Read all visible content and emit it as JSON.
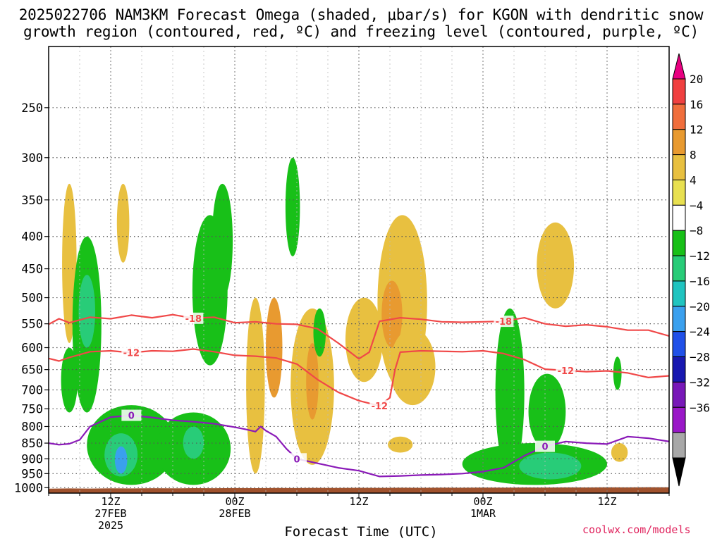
{
  "title": {
    "line1": "2025022706 NAM3KM Forecast Omega (shaded, μbar/s) for KGON with dendritic snow",
    "line2": "growth region (contoured, red, ºC) and freezing level (contoured, purple, ºC)"
  },
  "credit": "coolwx.com/models",
  "chart_data": {
    "type": "heatmap",
    "title": "2025022706 NAM3KM Forecast Omega (shaded, μbar/s) for KGON with dendritic snow growth region (contoured, red, ºC) and freezing level (contoured, purple, ºC)",
    "xlabel": "Forecast Time (UTC)",
    "ylabel": "",
    "y_log_scale": true,
    "y_reversed": true,
    "y_ticks": [
      250,
      300,
      350,
      400,
      450,
      500,
      550,
      600,
      650,
      700,
      750,
      800,
      850,
      900,
      950,
      1000
    ],
    "x_ticks": [
      {
        "top": "12Z",
        "mid": "27FEB",
        "bot": "2025"
      },
      {
        "top": "00Z",
        "mid": "28FEB",
        "bot": ""
      },
      {
        "top": "12Z",
        "mid": "",
        "bot": ""
      },
      {
        "top": "00Z",
        "mid": "1MAR",
        "bot": ""
      },
      {
        "top": "12Z",
        "mid": "",
        "bot": ""
      }
    ],
    "x_tick_hours": [
      6,
      18,
      30,
      42,
      54
    ],
    "x_range_hours": [
      0,
      60
    ],
    "y_range_hpa": [
      200,
      1020
    ],
    "grid": true,
    "colorbar": {
      "levels": [
        "20",
        "16",
        "12",
        "8",
        "4",
        "−4",
        "−8",
        "−12",
        "−16",
        "−20",
        "−24",
        "−28",
        "−32",
        "−36"
      ],
      "colors": [
        "#e80080",
        "#f04040",
        "#f06e3c",
        "#e89a30",
        "#e8c040",
        "#e8e050",
        "#ffffff",
        "#18c018",
        "#28cc78",
        "#20c4c0",
        "#3aa0ee",
        "#2050e8",
        "#1818b0",
        "#7818b8",
        "#9a18c8",
        "#a8a8a8",
        "#000000"
      ]
    },
    "contours": [
      {
        "color": "#f04848",
        "labels": [
          "-18",
          "-18"
        ],
        "points": [
          [
            0,
            551
          ],
          [
            1,
            540
          ],
          [
            2,
            548
          ],
          [
            4,
            537
          ],
          [
            6,
            540
          ],
          [
            8,
            533
          ],
          [
            10,
            538
          ],
          [
            12,
            532
          ],
          [
            14,
            539
          ],
          [
            16,
            537
          ],
          [
            18,
            548
          ],
          [
            20,
            546
          ],
          [
            22,
            550
          ],
          [
            24,
            551
          ],
          [
            26,
            560
          ],
          [
            28,
            590
          ],
          [
            30,
            625
          ],
          [
            31,
            610
          ],
          [
            32,
            545
          ],
          [
            34,
            538
          ],
          [
            36,
            541
          ],
          [
            38,
            546
          ],
          [
            40,
            547
          ],
          [
            42,
            546
          ],
          [
            44,
            545
          ],
          [
            46,
            538
          ],
          [
            48,
            550
          ],
          [
            50,
            555
          ],
          [
            52,
            552
          ],
          [
            54,
            556
          ],
          [
            56,
            563
          ],
          [
            58,
            563
          ],
          [
            60,
            575
          ]
        ]
      },
      {
        "color": "#f04848",
        "labels": [
          "-12",
          "-12",
          "-12"
        ],
        "points": [
          [
            0,
            624
          ],
          [
            1,
            630
          ],
          [
            2,
            622
          ],
          [
            4,
            609
          ],
          [
            6,
            607
          ],
          [
            8,
            611
          ],
          [
            10,
            607
          ],
          [
            12,
            608
          ],
          [
            14,
            603
          ],
          [
            16,
            609
          ],
          [
            18,
            617
          ],
          [
            20,
            619
          ],
          [
            22,
            623
          ],
          [
            24,
            637
          ],
          [
            26,
            674
          ],
          [
            28,
            706
          ],
          [
            30,
            728
          ],
          [
            32,
            742
          ],
          [
            33,
            720
          ],
          [
            33.5,
            650
          ],
          [
            34,
            610
          ],
          [
            36,
            607
          ],
          [
            38,
            608
          ],
          [
            40,
            609
          ],
          [
            42,
            607
          ],
          [
            44,
            613
          ],
          [
            46,
            627
          ],
          [
            48,
            649
          ],
          [
            50,
            652
          ],
          [
            52,
            655
          ],
          [
            54,
            653
          ],
          [
            56,
            658
          ],
          [
            58,
            669
          ],
          [
            60,
            665
          ]
        ]
      },
      {
        "color": "#8a1ab8",
        "labels": [
          "0",
          "0",
          "0"
        ],
        "points": [
          [
            0,
            850
          ],
          [
            1,
            855
          ],
          [
            2,
            852
          ],
          [
            3,
            840
          ],
          [
            4,
            800
          ],
          [
            6,
            773
          ],
          [
            8,
            768
          ],
          [
            10,
            774
          ],
          [
            12,
            782
          ],
          [
            14,
            786
          ],
          [
            16,
            792
          ],
          [
            18,
            802
          ],
          [
            19,
            808
          ],
          [
            20,
            815
          ],
          [
            20.5,
            800
          ],
          [
            21,
            812
          ],
          [
            22,
            830
          ],
          [
            23,
            868
          ],
          [
            24,
            900
          ],
          [
            26,
            915
          ],
          [
            28,
            930
          ],
          [
            30,
            940
          ],
          [
            32,
            960
          ],
          [
            34,
            958
          ],
          [
            36,
            955
          ],
          [
            38,
            953
          ],
          [
            40,
            950
          ],
          [
            42,
            943
          ],
          [
            44,
            930
          ],
          [
            46,
            890
          ],
          [
            48,
            860
          ],
          [
            50,
            845
          ],
          [
            52,
            850
          ],
          [
            54,
            853
          ],
          [
            56,
            830
          ],
          [
            58,
            835
          ],
          [
            60,
            845
          ]
        ]
      }
    ],
    "omega_regions": [
      {
        "cx": 2.0,
        "p": 450,
        "rx": 0.7,
        "rp": [
          330,
          590
        ],
        "value": 6
      },
      {
        "cx": 3.7,
        "p": 560,
        "rx": 1.4,
        "rp": [
          400,
          760
        ],
        "value": -8
      },
      {
        "cx": 3.7,
        "p": 530,
        "rx": 0.8,
        "rp": [
          460,
          600
        ],
        "value": -14
      },
      {
        "cx": 2.0,
        "p": 660,
        "rx": 0.8,
        "rp": [
          600,
          760
        ],
        "value": -10
      },
      {
        "cx": 7.2,
        "p": 380,
        "rx": 0.6,
        "rp": [
          330,
          440
        ],
        "value": 5
      },
      {
        "cx": 8.0,
        "p": 880,
        "rx": 4.3,
        "rp": [
          740,
          990
        ],
        "value": -9
      },
      {
        "cx": 7.0,
        "p": 890,
        "rx": 1.6,
        "rp": [
          820,
          960
        ],
        "value": -14
      },
      {
        "cx": 7.0,
        "p": 900,
        "rx": 0.6,
        "rp": [
          860,
          950
        ],
        "value": -22
      },
      {
        "cx": 14.0,
        "p": 880,
        "rx": 3.6,
        "rp": [
          760,
          990
        ],
        "value": -9
      },
      {
        "cx": 14.0,
        "p": 850,
        "rx": 1.0,
        "rp": [
          800,
          900
        ],
        "value": -14
      },
      {
        "cx": 15.6,
        "p": 470,
        "rx": 1.7,
        "rp": [
          370,
          640
        ],
        "value": -8
      },
      {
        "cx": 16.8,
        "p": 380,
        "rx": 1.0,
        "rp": [
          330,
          500
        ],
        "value": -8
      },
      {
        "cx": 20.0,
        "p": 640,
        "rx": 0.9,
        "rp": [
          500,
          950
        ],
        "value": 6
      },
      {
        "cx": 21.8,
        "p": 620,
        "rx": 0.8,
        "rp": [
          500,
          720
        ],
        "value": 10
      },
      {
        "cx": 23.6,
        "p": 370,
        "rx": 0.7,
        "rp": [
          300,
          430
        ],
        "value": -8
      },
      {
        "cx": 25.5,
        "p": 640,
        "rx": 2.1,
        "rp": [
          520,
          920
        ],
        "value": 6
      },
      {
        "cx": 25.5,
        "p": 680,
        "rx": 0.6,
        "rp": [
          590,
          780
        ],
        "value": 10
      },
      {
        "cx": 26.2,
        "p": 570,
        "rx": 0.6,
        "rp": [
          520,
          620
        ],
        "value": -8
      },
      {
        "cx": 30.5,
        "p": 560,
        "rx": 1.8,
        "rp": [
          500,
          680
        ],
        "value": 5
      },
      {
        "cx": 34.2,
        "p": 520,
        "rx": 2.4,
        "rp": [
          370,
          700
        ],
        "value": 6
      },
      {
        "cx": 33.2,
        "p": 540,
        "rx": 1.0,
        "rp": [
          470,
          600
        ],
        "value": 10
      },
      {
        "cx": 35.2,
        "p": 640,
        "rx": 2.2,
        "rp": [
          560,
          740
        ],
        "value": 5
      },
      {
        "cx": 34.0,
        "p": 850,
        "rx": 1.2,
        "rp": [
          830,
          880
        ],
        "value": 5
      },
      {
        "cx": 44.6,
        "p": 700,
        "rx": 1.4,
        "rp": [
          520,
          960
        ],
        "value": -8
      },
      {
        "cx": 48.2,
        "p": 790,
        "rx": 1.8,
        "rp": [
          660,
          870
        ],
        "value": -8
      },
      {
        "cx": 49.0,
        "p": 430,
        "rx": 1.8,
        "rp": [
          380,
          520
        ],
        "value": 5
      },
      {
        "cx": 47.0,
        "p": 910,
        "rx": 7.0,
        "rp": [
          850,
          990
        ],
        "value": -9
      },
      {
        "cx": 48.5,
        "p": 920,
        "rx": 3.0,
        "rp": [
          880,
          970
        ],
        "value": -14
      },
      {
        "cx": 55.0,
        "p": 660,
        "rx": 0.4,
        "rp": [
          620,
          700
        ],
        "value": -10
      },
      {
        "cx": 55.2,
        "p": 880,
        "rx": 0.8,
        "rp": [
          850,
          910
        ],
        "value": 5
      }
    ]
  }
}
